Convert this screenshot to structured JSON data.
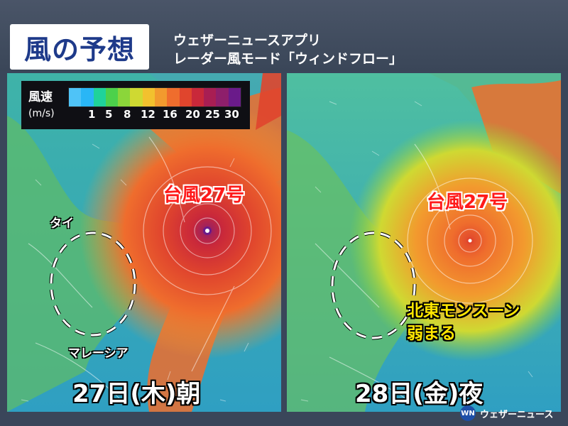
{
  "header": {
    "title": "風の予想",
    "subtitle_line1": "ウェザーニュースアプリ",
    "subtitle_line2": "レーダー風モード「ウィンドフロー」"
  },
  "legend": {
    "title": "風速",
    "unit": "(m/s)",
    "ticks": [
      "1",
      "5",
      "8",
      "12",
      "16",
      "20",
      "25",
      "30"
    ],
    "colors": [
      "#4fc3f7",
      "#29b6f6",
      "#1fd39a",
      "#4cd14b",
      "#8bd63a",
      "#cfd932",
      "#f2c12e",
      "#f29a2e",
      "#ef6d2d",
      "#e0452d",
      "#c9283a",
      "#a81e53",
      "#8e1f6b",
      "#6a1b8a"
    ]
  },
  "panels": [
    {
      "typhoon_label": "台風27号",
      "date_label": "27日(木)朝",
      "region_labels": {
        "thai": "タイ",
        "malaysia": "マレーシア"
      }
    },
    {
      "typhoon_label": "台風27号",
      "date_label": "28日(金)夜",
      "monsoon_line1": "北東モンスーン",
      "monsoon_line2": "弱まる"
    }
  ],
  "logo": {
    "mark": "WN",
    "text": "ウェザーニュース"
  },
  "colors": {
    "background": "#3a465a",
    "title_text": "#1e3a8a",
    "typhoon_label": "#ff1a1a",
    "monsoon_label": "#ffe600"
  }
}
